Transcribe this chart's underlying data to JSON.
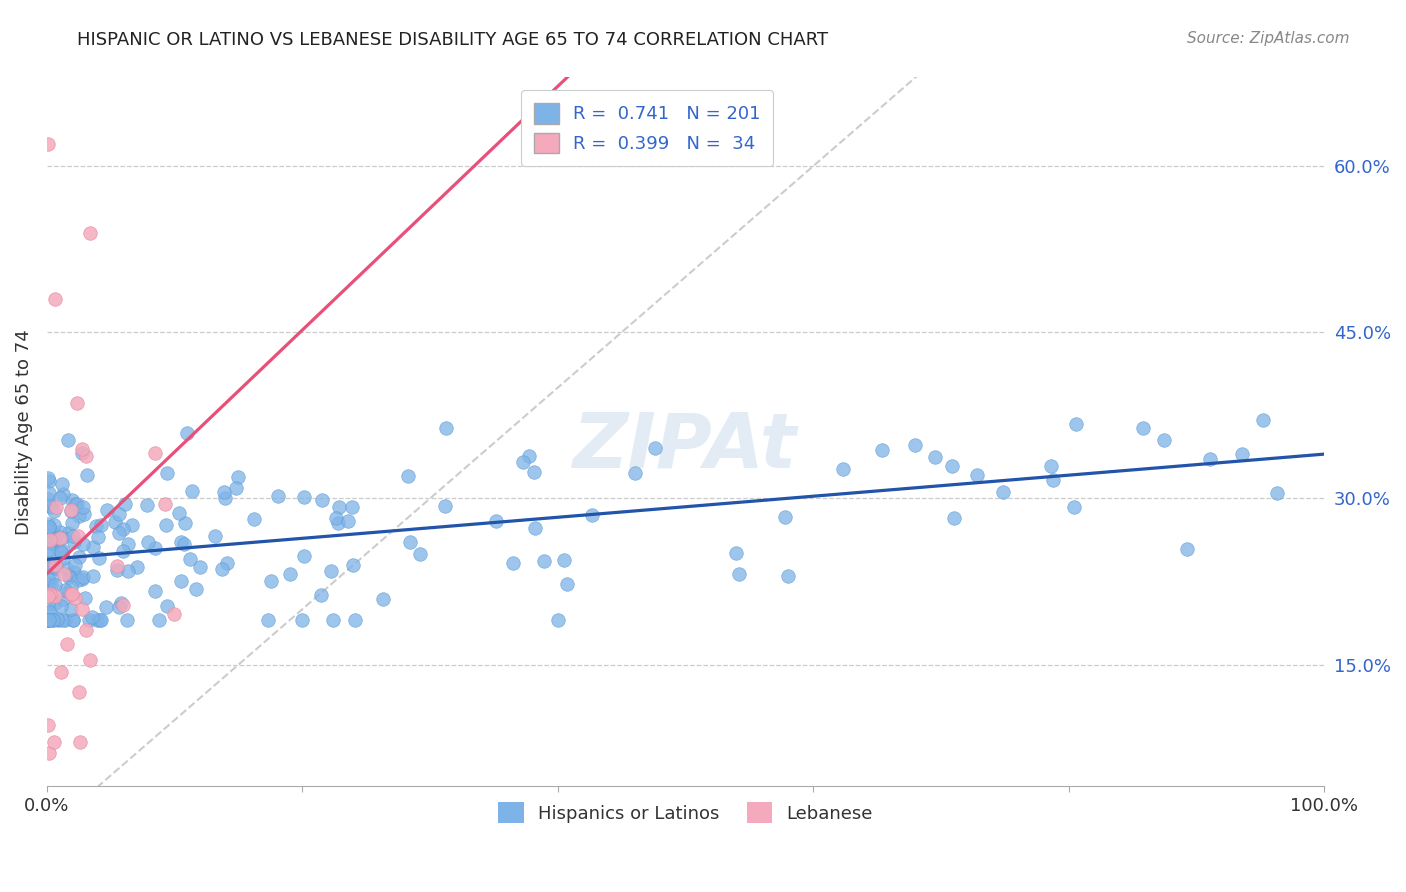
{
  "title": "HISPANIC OR LATINO VS LEBANESE DISABILITY AGE 65 TO 74 CORRELATION CHART",
  "source": "Source: ZipAtlas.com",
  "ylabel": "Disability Age 65 to 74",
  "xlim": [
    0,
    1.0
  ],
  "ylim": [
    0.04,
    0.68
  ],
  "ytick_labels_right": [
    "15.0%",
    "30.0%",
    "45.0%",
    "60.0%"
  ],
  "ytick_vals_right": [
    0.15,
    0.3,
    0.45,
    0.6
  ],
  "blue_color": "#7EB3E8",
  "blue_color_edge": "#5A9AD4",
  "pink_color": "#F4AABC",
  "pink_color_edge": "#E888A0",
  "blue_line_color": "#2255AA",
  "pink_line_color": "#E8507A",
  "dashed_line_color": "#C0C0C0",
  "legend_label_blue": "Hispanics or Latinos",
  "legend_label_pink": "Lebanese",
  "R_blue": 0.741,
  "N_blue": 201,
  "R_pink": 0.399,
  "N_pink": 34,
  "blue_intercept": 0.245,
  "blue_slope": 0.095,
  "pink_intercept": 0.232,
  "pink_slope": 1.1,
  "seed_blue": 42,
  "seed_pink": 7
}
